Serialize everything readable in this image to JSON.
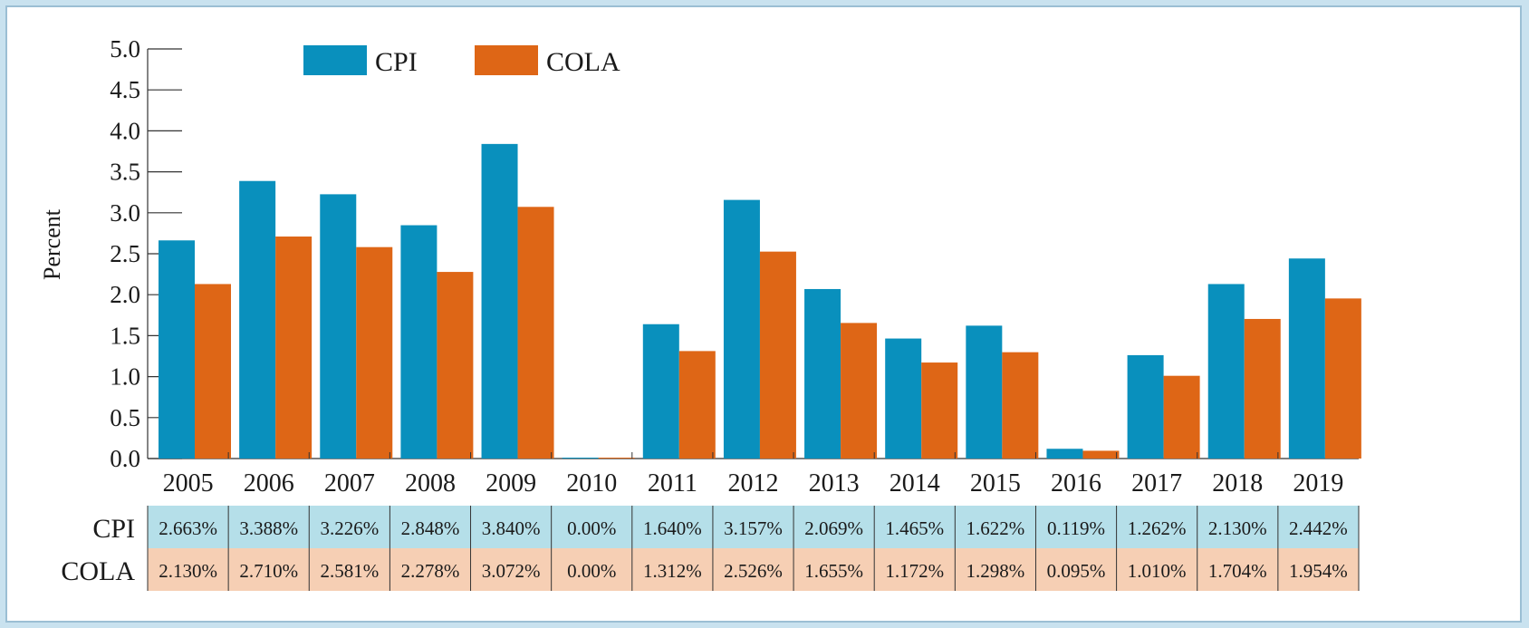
{
  "colors": {
    "cpi": "#0990bd",
    "cola": "#de6616",
    "cpi_row_bg": "#b5dfe9",
    "cola_row_bg": "#f6cfb4",
    "axis": "#333333",
    "background": "#c9e2ef"
  },
  "chart_data": {
    "type": "bar",
    "title": "",
    "xlabel": "",
    "ylabel": "Percent",
    "ylim": [
      0,
      5
    ],
    "yticks": [
      "0.0",
      "0.5",
      "1.0",
      "1.5",
      "2.0",
      "2.5",
      "3.0",
      "3.5",
      "4.0",
      "4.5",
      "5.0"
    ],
    "grid": false,
    "legend_position": "top-left",
    "categories": [
      "2005",
      "2006",
      "2007",
      "2008",
      "2009",
      "2010",
      "2011",
      "2012",
      "2013",
      "2014",
      "2015",
      "2016",
      "2017",
      "2018",
      "2019"
    ],
    "series": [
      {
        "name": "CPI",
        "values": [
          2.663,
          3.388,
          3.226,
          2.848,
          3.84,
          0.0,
          1.64,
          3.157,
          2.069,
          1.465,
          1.622,
          0.119,
          1.262,
          2.13,
          2.442
        ],
        "labels": [
          "2.663%",
          "3.388%",
          "3.226%",
          "2.848%",
          "3.840%",
          "0.00%",
          "1.640%",
          "3.157%",
          "2.069%",
          "1.465%",
          "1.622%",
          "0.119%",
          "1.262%",
          "2.130%",
          "2.442%"
        ]
      },
      {
        "name": "COLA",
        "values": [
          2.13,
          2.71,
          2.581,
          2.278,
          3.072,
          0.0,
          1.312,
          2.526,
          1.655,
          1.172,
          1.298,
          0.095,
          1.01,
          1.704,
          1.954
        ],
        "labels": [
          "2.130%",
          "2.710%",
          "2.581%",
          "2.278%",
          "3.072%",
          "0.00%",
          "1.312%",
          "2.526%",
          "1.655%",
          "1.172%",
          "1.298%",
          "0.095%",
          "1.010%",
          "1.704%",
          "1.954%"
        ]
      }
    ]
  }
}
